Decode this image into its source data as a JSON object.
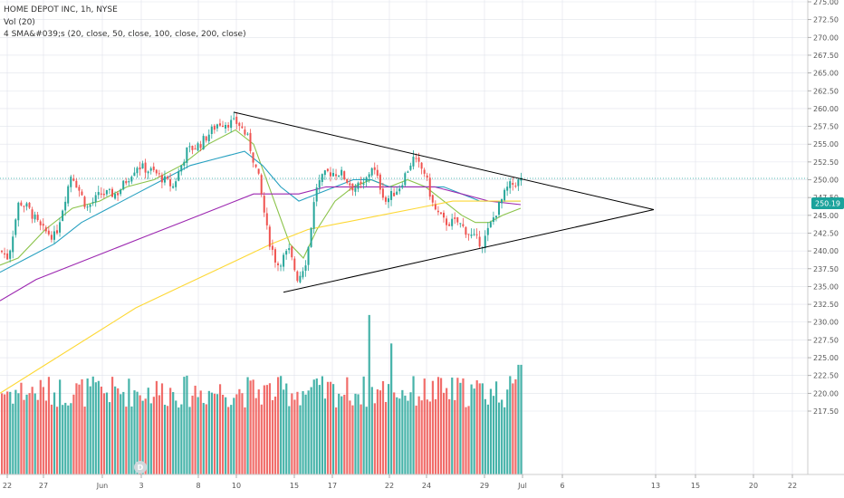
{
  "header": {
    "title": "HOME DEPOT INC, 1h, NYSE",
    "volume_indicator": "Vol (20)",
    "sma_indicator": "4 SMA&#039;s (20, close, 50, close, 100, close, 200, close)"
  },
  "price_axis": {
    "labels": [
      "275.00",
      "272.50",
      "270.00",
      "267.50",
      "265.00",
      "262.50",
      "260.00",
      "257.50",
      "255.00",
      "252.50",
      "250.00",
      "247.50",
      "245.00",
      "242.50",
      "240.00",
      "237.50",
      "235.00",
      "232.50",
      "230.00",
      "227.50",
      "225.00",
      "222.50",
      "220.00",
      "217.50"
    ],
    "current_price": "250.19"
  },
  "time_axis": {
    "labels": [
      "22",
      "27",
      "Jun",
      "3",
      "8",
      "10",
      "15",
      "17",
      "22",
      "24",
      "29",
      "Jul",
      "6",
      "13",
      "15",
      "20",
      "22"
    ]
  },
  "event_marker": "D",
  "colors": {
    "up": "#26a69a",
    "down": "#ef5350",
    "sma20": "#8bc34a",
    "sma50": "#26a0c0",
    "sma100": "#9c27b0",
    "sma200": "#fdd835",
    "price_label_bg": "#1ba39c",
    "trendline": "#000000"
  },
  "chart_data": {
    "type": "candlestick",
    "title": "HOME DEPOT INC, 1h, NYSE",
    "ylim": [
      216.5,
      276
    ],
    "current_price": 250.19,
    "x_ticks": [
      "22",
      "27",
      "Jun",
      "3",
      "8",
      "10",
      "15",
      "17",
      "22",
      "24",
      "29",
      "Jul",
      "6",
      "13",
      "15",
      "20",
      "22"
    ],
    "price_keypoints": [
      [
        0,
        240
      ],
      [
        8,
        239
      ],
      [
        20,
        247
      ],
      [
        30,
        246
      ],
      [
        45,
        243
      ],
      [
        60,
        242
      ],
      [
        78,
        251
      ],
      [
        95,
        246
      ],
      [
        110,
        248
      ],
      [
        128,
        248
      ],
      [
        150,
        252
      ],
      [
        170,
        251
      ],
      [
        190,
        249
      ],
      [
        205,
        254
      ],
      [
        220,
        255
      ],
      [
        240,
        258
      ],
      [
        262,
        258
      ],
      [
        272,
        256
      ],
      [
        285,
        250
      ],
      [
        295,
        242
      ],
      [
        305,
        238
      ],
      [
        318,
        240
      ],
      [
        328,
        236
      ],
      [
        338,
        239
      ],
      [
        348,
        249
      ],
      [
        360,
        251
      ],
      [
        375,
        251
      ],
      [
        388,
        249
      ],
      [
        400,
        249
      ],
      [
        410,
        252
      ],
      [
        425,
        247
      ],
      [
        440,
        249
      ],
      [
        455,
        253
      ],
      [
        468,
        251
      ],
      [
        478,
        246
      ],
      [
        490,
        244
      ],
      [
        505,
        244
      ],
      [
        520,
        242
      ],
      [
        532,
        241
      ],
      [
        545,
        245
      ],
      [
        560,
        249
      ],
      [
        575,
        250
      ]
    ],
    "series": [
      {
        "name": "SMA 20",
        "keypoints": [
          [
            0,
            238
          ],
          [
            20,
            239
          ],
          [
            50,
            243
          ],
          [
            80,
            246
          ],
          [
            110,
            247
          ],
          [
            140,
            249
          ],
          [
            170,
            250
          ],
          [
            200,
            252
          ],
          [
            230,
            255
          ],
          [
            260,
            257
          ],
          [
            280,
            255
          ],
          [
            300,
            248
          ],
          [
            320,
            241
          ],
          [
            335,
            239
          ],
          [
            350,
            243
          ],
          [
            370,
            247
          ],
          [
            390,
            249
          ],
          [
            410,
            250
          ],
          [
            430,
            249
          ],
          [
            450,
            250
          ],
          [
            470,
            249
          ],
          [
            490,
            247
          ],
          [
            510,
            245
          ],
          [
            525,
            244
          ],
          [
            540,
            244
          ],
          [
            555,
            245
          ],
          [
            575,
            246
          ]
        ]
      },
      {
        "name": "SMA 50",
        "keypoints": [
          [
            0,
            237
          ],
          [
            30,
            239
          ],
          [
            60,
            241
          ],
          [
            90,
            244
          ],
          [
            120,
            246
          ],
          [
            150,
            248
          ],
          [
            180,
            250
          ],
          [
            210,
            252
          ],
          [
            240,
            253
          ],
          [
            270,
            254
          ],
          [
            290,
            252
          ],
          [
            310,
            249
          ],
          [
            330,
            247
          ],
          [
            350,
            248
          ],
          [
            370,
            249
          ],
          [
            390,
            250
          ],
          [
            410,
            250
          ],
          [
            430,
            249
          ],
          [
            450,
            249
          ],
          [
            470,
            249
          ],
          [
            490,
            249
          ],
          [
            510,
            248
          ],
          [
            530,
            247
          ],
          [
            550,
            247
          ],
          [
            575,
            247
          ]
        ]
      },
      {
        "name": "SMA 100",
        "keypoints": [
          [
            0,
            233
          ],
          [
            40,
            236
          ],
          [
            80,
            238
          ],
          [
            120,
            240
          ],
          [
            160,
            242
          ],
          [
            200,
            244
          ],
          [
            240,
            246
          ],
          [
            280,
            248
          ],
          [
            300,
            248
          ],
          [
            330,
            248
          ],
          [
            360,
            249
          ],
          [
            390,
            249
          ],
          [
            420,
            249
          ],
          [
            450,
            249
          ],
          [
            480,
            249
          ],
          [
            510,
            248
          ],
          [
            540,
            247
          ],
          [
            575,
            246.5
          ]
        ]
      },
      {
        "name": "SMA 200",
        "keypoints": [
          [
            0,
            220
          ],
          [
            50,
            224
          ],
          [
            100,
            228
          ],
          [
            150,
            232
          ],
          [
            200,
            235
          ],
          [
            250,
            238
          ],
          [
            300,
            241
          ],
          [
            340,
            243
          ],
          [
            380,
            244
          ],
          [
            420,
            245
          ],
          [
            460,
            246
          ],
          [
            500,
            247
          ],
          [
            540,
            247
          ],
          [
            575,
            247
          ]
        ]
      }
    ],
    "volume_spikes": [
      [
        408,
        231
      ],
      [
        430,
        227
      ]
    ],
    "trendlines": [
      {
        "from": [
          258,
          259.5
        ],
        "to": [
          722,
          245.8
        ]
      },
      {
        "from": [
          313,
          234.2
        ],
        "to": [
          722,
          245.8
        ]
      }
    ]
  }
}
